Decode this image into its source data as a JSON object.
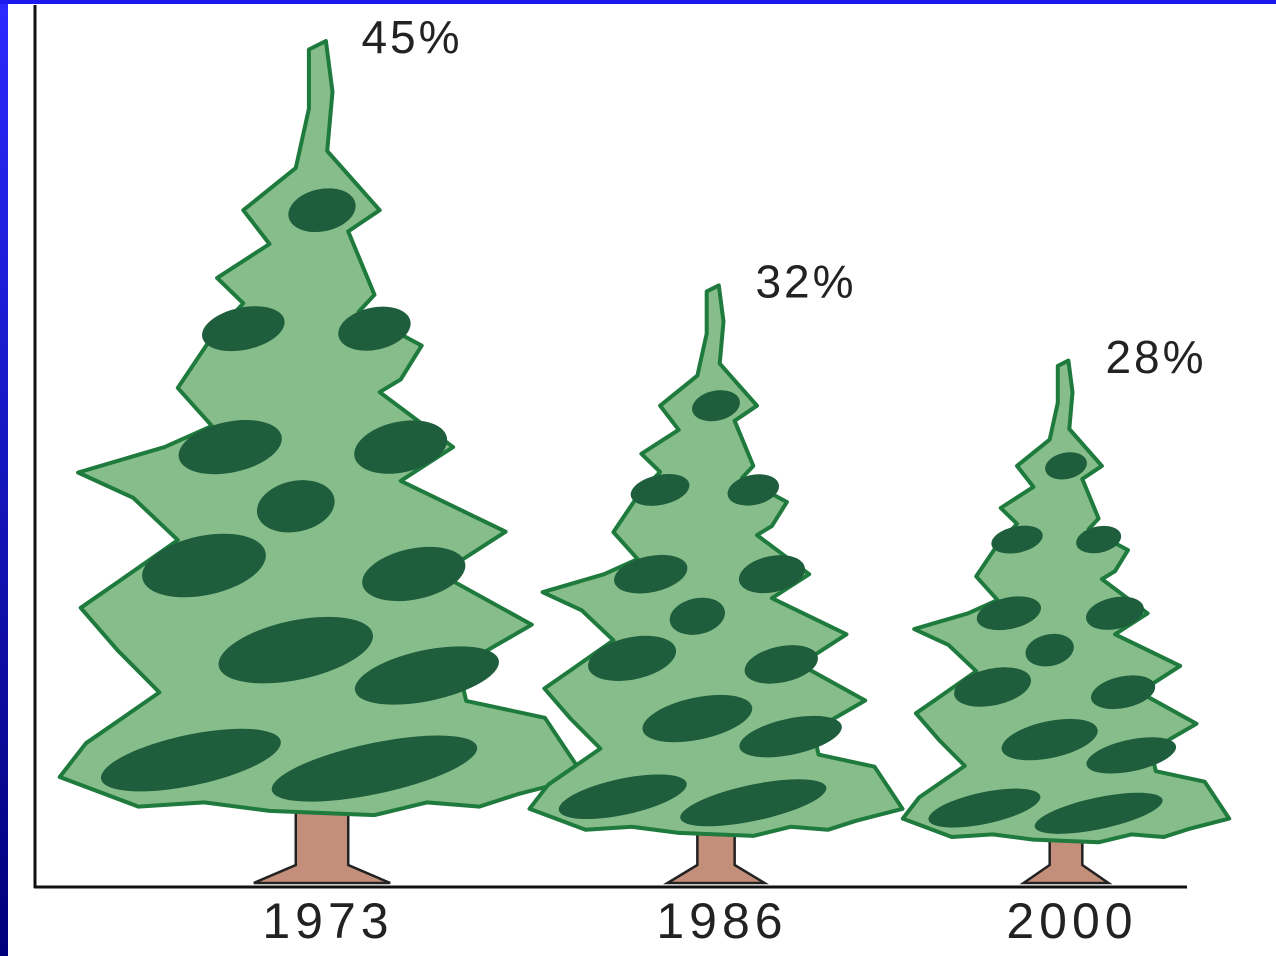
{
  "chart_data": {
    "type": "pictograph",
    "categories": [
      "1973",
      "1986",
      "2000"
    ],
    "values": [
      45,
      32,
      28
    ],
    "value_labels": [
      "45%",
      "32%",
      "28%"
    ],
    "color": "#86bd8a"
  }
}
